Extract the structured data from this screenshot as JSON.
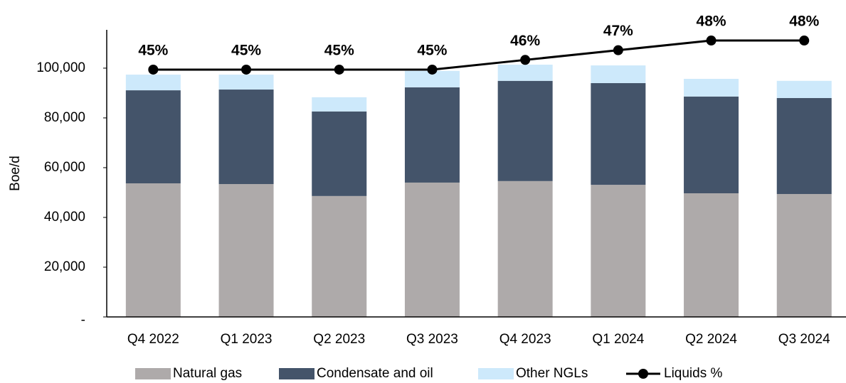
{
  "chart_data": {
    "type": "bar",
    "stacked": true,
    "y_label": "Boe/d",
    "categories": [
      "Q4 2022",
      "Q1 2023",
      "Q2 2023",
      "Q3 2023",
      "Q4 2023",
      "Q1 2024",
      "Q2 2024",
      "Q3 2024"
    ],
    "series": [
      {
        "name": "Natural gas",
        "color": "#aeaaaa",
        "values": [
          53700,
          53400,
          48600,
          54000,
          54600,
          53100,
          49700,
          49400
        ]
      },
      {
        "name": "Condensate and oil",
        "color": "#44546a",
        "values": [
          37400,
          38000,
          34000,
          38300,
          40300,
          40900,
          38900,
          38600
        ]
      },
      {
        "name": "Other NGLs",
        "color": "#cde9fb",
        "values": [
          6300,
          6000,
          5700,
          6600,
          6500,
          7100,
          7100,
          6900
        ]
      },
      {
        "name": "Liquids %",
        "color": "#000000",
        "type": "line",
        "axis": "y2",
        "values": [
          45,
          45,
          45,
          45,
          46,
          47,
          48,
          48
        ],
        "value_labels": [
          "45%",
          "45%",
          "45%",
          "45%",
          "46%",
          "47%",
          "48%",
          "48%"
        ]
      }
    ],
    "ylim": [
      0,
      115400
    ],
    "yticks": [
      {
        "value": 0,
        "label": "-"
      },
      {
        "value": 20000,
        "label": "20,000"
      },
      {
        "value": 40000,
        "label": "40,000"
      },
      {
        "value": 60000,
        "label": "60,000"
      },
      {
        "value": 80000,
        "label": "80,000"
      },
      {
        "value": 100000,
        "label": "100,000"
      }
    ],
    "y2lim": [
      19.5,
      49.1
    ],
    "legend": "bottom"
  }
}
